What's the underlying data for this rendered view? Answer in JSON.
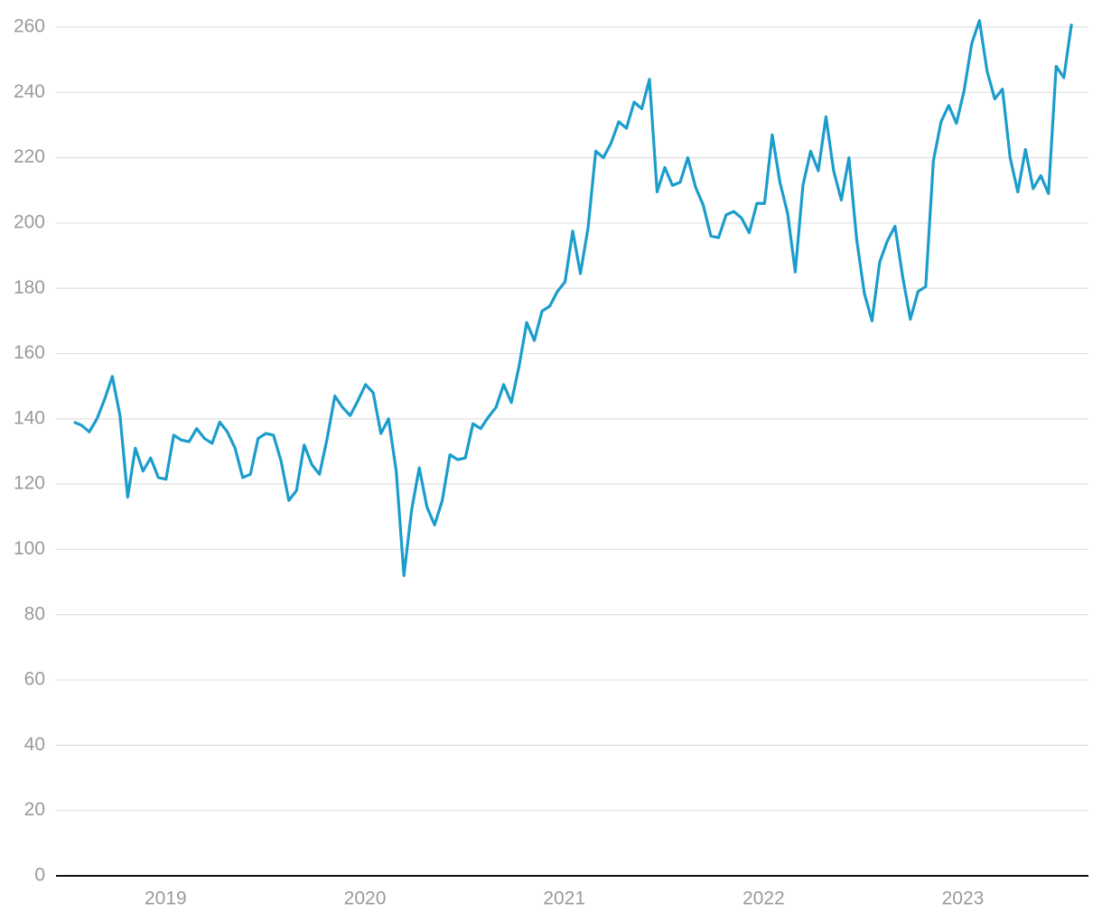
{
  "chart_data": {
    "type": "line",
    "x": [
      2018.54,
      2018.5785,
      2018.617,
      2018.6555,
      2018.694,
      2018.7325,
      2018.771,
      2018.8095,
      2018.848,
      2018.8865,
      2018.925,
      2018.9635,
      2019.002,
      2019.0405,
      2019.079,
      2019.1175,
      2019.156,
      2019.1945,
      2019.233,
      2019.2715,
      2019.31,
      2019.3485,
      2019.387,
      2019.4255,
      2019.464,
      2019.5025,
      2019.541,
      2019.5795,
      2019.618,
      2019.6565,
      2019.695,
      2019.7335,
      2019.772,
      2019.8105,
      2019.849,
      2019.8875,
      2019.926,
      2019.9645,
      2020.003,
      2020.0415,
      2020.08,
      2020.1185,
      2020.157,
      2020.1955,
      2020.234,
      2020.2725,
      2020.311,
      2020.3495,
      2020.388,
      2020.4265,
      2020.465,
      2020.5035,
      2020.542,
      2020.5805,
      2020.619,
      2020.6575,
      2020.696,
      2020.7345,
      2020.773,
      2020.8115,
      2020.85,
      2020.8885,
      2020.927,
      2020.9655,
      2021.004,
      2021.0425,
      2021.081,
      2021.1195,
      2021.158,
      2021.1965,
      2021.235,
      2021.2735,
      2021.312,
      2021.3505,
      2021.389,
      2021.4275,
      2021.466,
      2021.5045,
      2021.543,
      2021.5815,
      2021.62,
      2021.6585,
      2021.697,
      2021.7355,
      2021.774,
      2021.8125,
      2021.851,
      2021.8895,
      2021.928,
      2021.9665,
      2022.005,
      2022.0435,
      2022.082,
      2022.1205,
      2022.159,
      2022.1975,
      2022.236,
      2022.2745,
      2022.313,
      2022.3515,
      2022.39,
      2022.4285,
      2022.467,
      2022.5055,
      2022.544,
      2022.5825,
      2022.621,
      2022.6595,
      2022.698,
      2022.7365,
      2022.775,
      2022.8135,
      2022.852,
      2022.8905,
      2022.929,
      2022.9675,
      2023.006,
      2023.0445,
      2023.083,
      2023.1215,
      2023.16,
      2023.1985,
      2023.237,
      2023.2755,
      2023.314,
      2023.3525,
      2023.391,
      2023.4295,
      2023.468,
      2023.5065,
      2023.545
    ],
    "series": [
      {
        "color": "#1b9dcb",
        "values": [
          139,
          138,
          136,
          140,
          146,
          153,
          141,
          116,
          131,
          124,
          128,
          122,
          121.5,
          135,
          133.5,
          133,
          137,
          134,
          132.5,
          139,
          136,
          131,
          122,
          123,
          134,
          135.5,
          135,
          127,
          115,
          118,
          132,
          126,
          123,
          134,
          147,
          143.5,
          141,
          145.5,
          150.5,
          148,
          135.5,
          140,
          124,
          92,
          112,
          125,
          113,
          107.5,
          115,
          129,
          127.5,
          128,
          138.5,
          137,
          140.5,
          143.5,
          150.5,
          145,
          156,
          169.5,
          164,
          173,
          174.5,
          179,
          182,
          197.5,
          184.5,
          198.5,
          222,
          220,
          224.5,
          231,
          229,
          237,
          235,
          244,
          209.5,
          217,
          211.5,
          212.5,
          220,
          211,
          205.5,
          196,
          195.5,
          202.5,
          203.5,
          201.5,
          197,
          206,
          206,
          227,
          212.5,
          203,
          185,
          211.5,
          222,
          216,
          232.5,
          216,
          207,
          220,
          195,
          178.5,
          170,
          188,
          194.5,
          199,
          183.5,
          170.5,
          179,
          180.5,
          219,
          231,
          236,
          230.5,
          240.5,
          255,
          262,
          246.5,
          238,
          241,
          220,
          209.5,
          222.5,
          210.5,
          214.5,
          209,
          248,
          244.5,
          261
        ]
      }
    ],
    "xlim": [
      2018.45,
      2023.63
    ],
    "xticks": [
      2019,
      2020,
      2021,
      2022,
      2023
    ],
    "ylim": [
      0,
      265
    ],
    "yticks": [
      0,
      20,
      40,
      60,
      80,
      100,
      120,
      140,
      160,
      180,
      200,
      220,
      240,
      260
    ],
    "grid": true
  }
}
